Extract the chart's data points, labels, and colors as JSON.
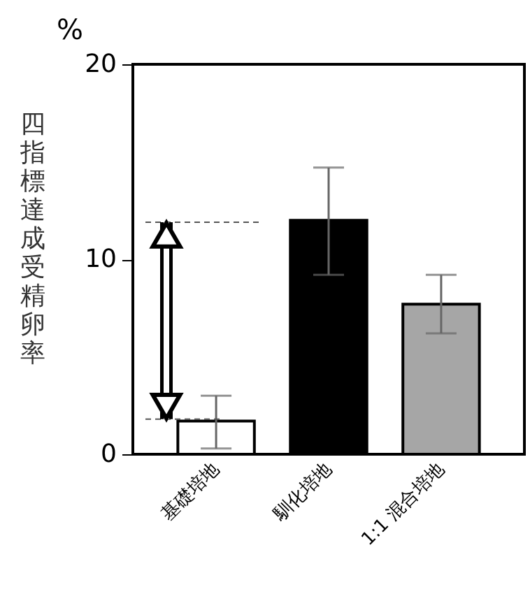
{
  "chart_data": {
    "type": "bar",
    "ylabel": "四指標達成受精卵率",
    "annotations": [
      "%"
    ],
    "categories": [
      "基礎培地",
      "馴化培地",
      "1:1 混合培地"
    ],
    "values": [
      1.7,
      12.0,
      7.7
    ],
    "colors": [
      "#ffffff",
      "#000000",
      "#a6a6a6"
    ],
    "errors": [
      [
        0.3,
        3.0
      ],
      [
        9.2,
        14.7
      ],
      [
        6.2,
        9.2
      ]
    ],
    "ylim": [
      0,
      20
    ],
    "yticks": [
      0,
      10,
      20
    ],
    "grid": false,
    "ref_lines": [
      {
        "axis": "y",
        "value": 11.9,
        "color": "#555555",
        "line_style": "dashed"
      },
      {
        "axis": "y",
        "value": 1.8,
        "color": "#555555",
        "line_style": "dashed"
      }
    ]
  }
}
